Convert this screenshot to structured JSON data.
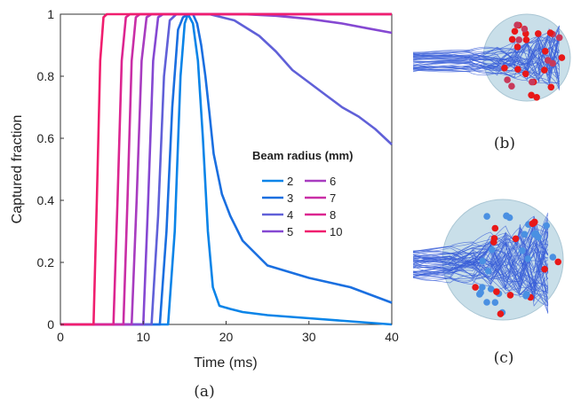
{
  "chart_data": {
    "type": "line",
    "title": "",
    "xlabel": "Time (ms)",
    "ylabel": "Captured fraction",
    "xlim": [
      0,
      40
    ],
    "ylim": [
      0,
      1
    ],
    "xticks": [
      0,
      10,
      20,
      30,
      40
    ],
    "yticks": [
      0,
      0.2,
      0.4,
      0.6,
      0.8,
      1
    ],
    "ytick_labels": [
      "0",
      "0.2",
      "0.4",
      "0.6",
      "0.8",
      "1"
    ],
    "grid": false,
    "legend": {
      "title": "Beam radius (mm)",
      "placement": "right",
      "columns": 2
    },
    "series": [
      {
        "name": "2",
        "color": "#0a84e8",
        "x": [
          0,
          13.0,
          13.8,
          14.5,
          15.0,
          15.4,
          16.0,
          16.6,
          17.2,
          17.8,
          18.4,
          19.2,
          20.5,
          22,
          25,
          30,
          35,
          40
        ],
        "y": [
          0,
          0,
          0.3,
          0.8,
          0.97,
          1.0,
          0.97,
          0.85,
          0.6,
          0.3,
          0.12,
          0.06,
          0.05,
          0.04,
          0.03,
          0.02,
          0.01,
          0.0
        ]
      },
      {
        "name": "3",
        "color": "#1a6fe0",
        "x": [
          0,
          12.0,
          12.8,
          13.5,
          14.2,
          14.8,
          15.5,
          16.0,
          16.5,
          17.0,
          17.5,
          18.0,
          18.5,
          19.5,
          20.5,
          22,
          25,
          30,
          35,
          40
        ],
        "y": [
          0,
          0,
          0.3,
          0.7,
          0.95,
          0.99,
          1.0,
          1.0,
          0.97,
          0.9,
          0.8,
          0.68,
          0.55,
          0.42,
          0.35,
          0.27,
          0.19,
          0.15,
          0.12,
          0.07
        ]
      },
      {
        "name": "4",
        "color": "#6060d8",
        "x": [
          0,
          11.0,
          11.8,
          12.5,
          13.2,
          14,
          18,
          21,
          24,
          26,
          28,
          30,
          32,
          34,
          36,
          38,
          40
        ],
        "y": [
          0,
          0,
          0.35,
          0.8,
          0.98,
          1.0,
          1.0,
          0.98,
          0.93,
          0.88,
          0.82,
          0.78,
          0.74,
          0.7,
          0.67,
          0.63,
          0.58
        ]
      },
      {
        "name": "5",
        "color": "#8548d2",
        "x": [
          0,
          10.0,
          10.6,
          11.2,
          11.8,
          12.4,
          22,
          26,
          30,
          34,
          37,
          40
        ],
        "y": [
          0,
          0,
          0.4,
          0.85,
          0.99,
          1.0,
          1.0,
          0.995,
          0.985,
          0.97,
          0.955,
          0.94
        ]
      },
      {
        "name": "6",
        "color": "#a83cc0",
        "x": [
          0,
          8.6,
          9.2,
          9.8,
          10.4,
          11.0,
          40
        ],
        "y": [
          0,
          0,
          0.4,
          0.85,
          0.99,
          1.0,
          1.0
        ]
      },
      {
        "name": "7",
        "color": "#c92ea6",
        "x": [
          0,
          7.6,
          8.1,
          8.6,
          9.1,
          9.6,
          40
        ],
        "y": [
          0,
          0,
          0.4,
          0.85,
          0.99,
          1.0,
          1.0
        ]
      },
      {
        "name": "8",
        "color": "#dc2590",
        "x": [
          0,
          6.4,
          6.9,
          7.4,
          7.9,
          8.4,
          40
        ],
        "y": [
          0,
          0,
          0.4,
          0.85,
          0.99,
          1.0,
          1.0
        ]
      },
      {
        "name": "10",
        "color": "#f01e6e",
        "x": [
          0,
          4.0,
          4.4,
          4.8,
          5.2,
          5.6,
          40
        ],
        "y": [
          0,
          0,
          0.4,
          0.85,
          0.99,
          1.0,
          1.0
        ]
      }
    ]
  },
  "panels": {
    "a": "(a)",
    "b": "(b)",
    "c": "(c)"
  },
  "insets": {
    "b": {
      "sphere_color": "#c9dfe9",
      "trajectory_color": "#3a5fd8",
      "point_colors": [
        "#e81818",
        "#c83a5a"
      ]
    },
    "c": {
      "sphere_color": "#c9dfe9",
      "trajectory_color": "#3a5fd8",
      "point_colors": [
        "#4a90e2",
        "#e81818"
      ]
    }
  }
}
